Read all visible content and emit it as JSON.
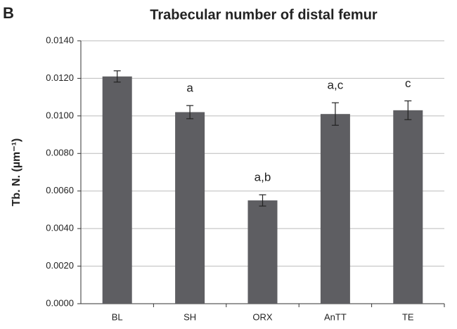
{
  "panel_label": "B",
  "chart_data": {
    "type": "bar",
    "title": "Trabecular number of distal femur",
    "ylabel": "Tb. N. (µm⁻¹)",
    "categories": [
      "BL",
      "SH",
      "ORX",
      "AnTT",
      "TE"
    ],
    "values": [
      0.0121,
      0.0102,
      0.0055,
      0.0101,
      0.0103
    ],
    "errors": [
      0.0003,
      0.00035,
      0.0003,
      0.0006,
      0.0005
    ],
    "annotations": [
      null,
      "a",
      "a,b",
      "a,c",
      "c"
    ],
    "color": "#5e5e62",
    "ylim": [
      0,
      0.014
    ],
    "yticks": [
      {
        "value": 0,
        "label": "0.0000"
      },
      {
        "value": 0.002,
        "label": "0.0020"
      },
      {
        "value": 0.004,
        "label": "0.0040"
      },
      {
        "value": 0.006,
        "label": "0.0060"
      },
      {
        "value": 0.008,
        "label": "0.0080"
      },
      {
        "value": 0.01,
        "label": "0.0100"
      },
      {
        "value": 0.012,
        "label": "0.0120"
      },
      {
        "value": 0.014,
        "label": "0.0140"
      }
    ],
    "grid": true
  }
}
